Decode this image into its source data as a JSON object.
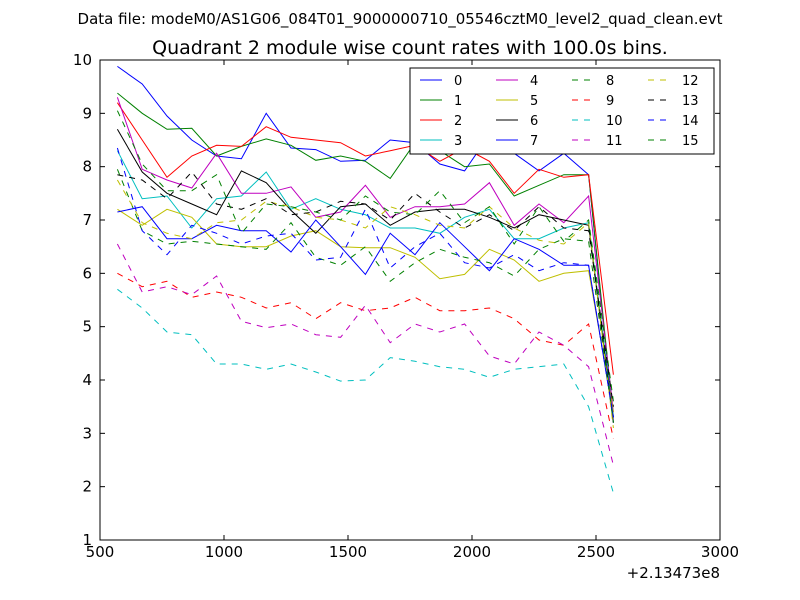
{
  "suptitle": "Data file: modeM0/AS1G06_084T01_9000000710_05546cztM0_level2_quad_clean.evt",
  "chart_data": {
    "type": "line",
    "title": "Quadrant 2 module wise count rates with 100.0s bins.",
    "xlabel": "",
    "ylabel": "",
    "x_offset_label": "+2.13473e8",
    "xlim": [
      500,
      3000
    ],
    "ylim": [
      1,
      10
    ],
    "xticks": [
      "500",
      "1000",
      "1500",
      "2000",
      "2500",
      "3000"
    ],
    "yticks": [
      "1",
      "2",
      "3",
      "4",
      "5",
      "6",
      "7",
      "8",
      "9",
      "10"
    ],
    "x": [
      570,
      670,
      770,
      870,
      970,
      1070,
      1170,
      1270,
      1370,
      1470,
      1570,
      1670,
      1770,
      1870,
      1970,
      2070,
      2170,
      2270,
      2370,
      2470,
      2570
    ],
    "legend_position": "top-right",
    "series": [
      {
        "name": "0",
        "color": "#0000ff",
        "dash": false,
        "values": [
          9.88,
          9.55,
          8.95,
          8.5,
          8.2,
          8.15,
          9.0,
          8.35,
          8.32,
          8.1,
          8.12,
          8.5,
          8.45,
          8.05,
          7.92,
          8.6,
          8.25,
          7.92,
          8.25,
          7.85,
          3.2
        ]
      },
      {
        "name": "1",
        "color": "#008000",
        "dash": false,
        "values": [
          9.38,
          9.0,
          8.7,
          8.72,
          8.2,
          8.38,
          8.52,
          8.4,
          8.12,
          8.2,
          8.1,
          7.78,
          8.45,
          8.3,
          8.0,
          8.05,
          7.45,
          7.65,
          7.85,
          7.85,
          3.3
        ]
      },
      {
        "name": "2",
        "color": "#ff0000",
        "dash": false,
        "values": [
          9.2,
          8.5,
          7.8,
          8.2,
          8.4,
          8.38,
          8.75,
          8.55,
          8.5,
          8.45,
          8.2,
          8.3,
          8.4,
          8.1,
          8.35,
          8.1,
          7.5,
          7.95,
          7.8,
          7.85,
          4.1
        ]
      },
      {
        "name": "3",
        "color": "#00bfbf",
        "dash": false,
        "values": [
          8.3,
          7.4,
          7.45,
          6.85,
          7.4,
          7.45,
          7.9,
          7.2,
          7.4,
          7.2,
          7.1,
          6.85,
          6.85,
          6.75,
          7.05,
          7.2,
          6.65,
          6.65,
          6.85,
          6.95,
          3.3
        ]
      },
      {
        "name": "4",
        "color": "#bf00bf",
        "dash": false,
        "values": [
          9.3,
          7.95,
          7.75,
          7.6,
          8.25,
          7.5,
          7.5,
          7.62,
          7.05,
          7.15,
          7.65,
          7.05,
          7.25,
          7.25,
          7.3,
          7.7,
          6.9,
          7.3,
          6.95,
          7.45,
          3.4
        ]
      },
      {
        "name": "5",
        "color": "#bfbf00",
        "dash": false,
        "values": [
          7.2,
          6.9,
          7.2,
          7.05,
          6.55,
          6.5,
          6.5,
          6.7,
          6.8,
          6.5,
          6.48,
          6.48,
          6.3,
          5.9,
          5.98,
          6.45,
          6.25,
          5.85,
          6.0,
          6.05,
          3.4
        ]
      },
      {
        "name": "6",
        "color": "#000000",
        "dash": false,
        "values": [
          8.7,
          7.9,
          7.5,
          7.3,
          7.1,
          7.92,
          7.7,
          7.18,
          6.75,
          7.25,
          7.3,
          6.9,
          7.15,
          7.2,
          7.2,
          7.05,
          6.85,
          7.1,
          7.0,
          6.9,
          3.2
        ]
      },
      {
        "name": "7",
        "color": "#0000ff",
        "dash": false,
        "values": [
          7.15,
          7.25,
          6.65,
          6.65,
          6.9,
          6.8,
          6.8,
          6.4,
          7.0,
          6.5,
          5.98,
          6.75,
          6.35,
          6.95,
          6.5,
          6.05,
          6.65,
          6.45,
          6.15,
          6.15,
          3.3
        ]
      },
      {
        "name": "8",
        "color": "#008000",
        "dash": true,
        "values": [
          7.95,
          6.8,
          6.55,
          6.6,
          6.55,
          6.5,
          6.45,
          6.95,
          6.3,
          6.15,
          6.5,
          5.85,
          6.2,
          6.45,
          6.3,
          6.2,
          5.95,
          6.45,
          6.65,
          6.6,
          3.2
        ]
      },
      {
        "name": "9",
        "color": "#ff0000",
        "dash": true,
        "values": [
          6.0,
          5.75,
          5.85,
          5.55,
          5.65,
          5.55,
          5.35,
          5.45,
          5.15,
          5.45,
          5.3,
          5.35,
          5.55,
          5.3,
          5.3,
          5.35,
          5.15,
          4.75,
          4.65,
          5.05,
          2.9
        ]
      },
      {
        "name": "10",
        "color": "#00bfbf",
        "dash": true,
        "values": [
          5.7,
          5.35,
          4.9,
          4.85,
          4.3,
          4.3,
          4.2,
          4.3,
          4.15,
          3.98,
          4.0,
          4.42,
          4.35,
          4.25,
          4.2,
          4.05,
          4.2,
          4.25,
          4.3,
          3.5,
          1.88
        ]
      },
      {
        "name": "11",
        "color": "#bf00bf",
        "dash": true,
        "values": [
          6.55,
          5.65,
          5.75,
          5.6,
          5.95,
          5.1,
          4.98,
          5.05,
          4.85,
          4.8,
          5.4,
          4.7,
          5.05,
          4.9,
          5.05,
          4.45,
          4.3,
          4.9,
          4.65,
          4.25,
          2.4
        ]
      },
      {
        "name": "12",
        "color": "#bfbf00",
        "dash": true,
        "values": [
          7.75,
          6.95,
          6.75,
          6.65,
          6.95,
          7.0,
          7.35,
          7.25,
          7.05,
          7.0,
          6.85,
          7.25,
          7.1,
          6.9,
          6.85,
          7.25,
          6.85,
          6.62,
          6.55,
          6.95,
          3.1
        ]
      },
      {
        "name": "13",
        "color": "#000000",
        "dash": true,
        "values": [
          7.85,
          7.75,
          7.4,
          7.9,
          7.3,
          7.2,
          7.4,
          7.1,
          7.15,
          7.35,
          7.3,
          7.0,
          7.5,
          7.15,
          6.85,
          7.1,
          6.8,
          7.25,
          6.85,
          6.8,
          3.5
        ]
      },
      {
        "name": "14",
        "color": "#0000ff",
        "dash": true,
        "values": [
          8.35,
          6.8,
          6.35,
          6.9,
          6.75,
          6.55,
          6.7,
          6.75,
          6.25,
          6.3,
          7.2,
          6.1,
          6.5,
          6.75,
          6.2,
          6.1,
          6.35,
          6.05,
          6.2,
          6.15,
          3.3
        ]
      },
      {
        "name": "15",
        "color": "#008000",
        "dash": true,
        "values": [
          9.05,
          8.05,
          7.55,
          7.55,
          7.85,
          6.75,
          7.3,
          7.25,
          7.15,
          7.0,
          7.45,
          7.15,
          7.1,
          7.55,
          6.95,
          7.25,
          6.55,
          7.25,
          6.6,
          7.0,
          3.6
        ]
      }
    ]
  }
}
